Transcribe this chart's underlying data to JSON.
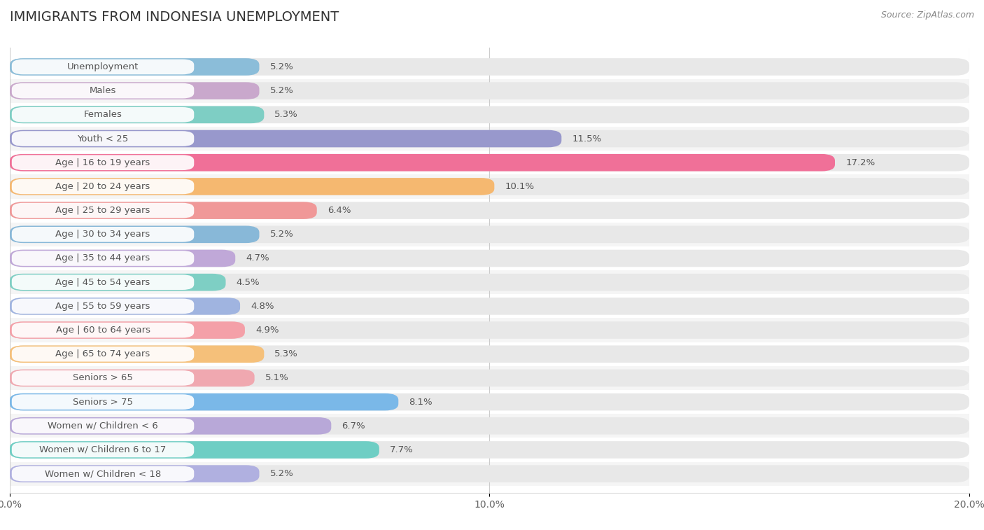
{
  "title": "IMMIGRANTS FROM INDONESIA UNEMPLOYMENT",
  "source": "Source: ZipAtlas.com",
  "categories": [
    "Unemployment",
    "Males",
    "Females",
    "Youth < 25",
    "Age | 16 to 19 years",
    "Age | 20 to 24 years",
    "Age | 25 to 29 years",
    "Age | 30 to 34 years",
    "Age | 35 to 44 years",
    "Age | 45 to 54 years",
    "Age | 55 to 59 years",
    "Age | 60 to 64 years",
    "Age | 65 to 74 years",
    "Seniors > 65",
    "Seniors > 75",
    "Women w/ Children < 6",
    "Women w/ Children 6 to 17",
    "Women w/ Children < 18"
  ],
  "values": [
    5.2,
    5.2,
    5.3,
    11.5,
    17.2,
    10.1,
    6.4,
    5.2,
    4.7,
    4.5,
    4.8,
    4.9,
    5.3,
    5.1,
    8.1,
    6.7,
    7.7,
    5.2
  ],
  "colors": [
    "#8bbdd9",
    "#c9a8cc",
    "#7ecec4",
    "#9898cc",
    "#f07098",
    "#f5b870",
    "#f09898",
    "#88b8d8",
    "#c0a8d8",
    "#7ecfc4",
    "#a0b4e0",
    "#f4a0a8",
    "#f5c07a",
    "#f0a8b0",
    "#7ab8e8",
    "#b8a8d8",
    "#6ecec4",
    "#b0b0e0"
  ],
  "xlim": [
    0,
    20
  ],
  "xticks": [
    0.0,
    10.0,
    20.0
  ],
  "xtick_labels": [
    "0.0%",
    "10.0%",
    "20.0%"
  ],
  "background_color": "#ffffff",
  "row_alt_color": "#f5f5f5",
  "bar_bg_color": "#e8e8e8",
  "title_fontsize": 14,
  "label_fontsize": 9.5,
  "value_fontsize": 9.5
}
